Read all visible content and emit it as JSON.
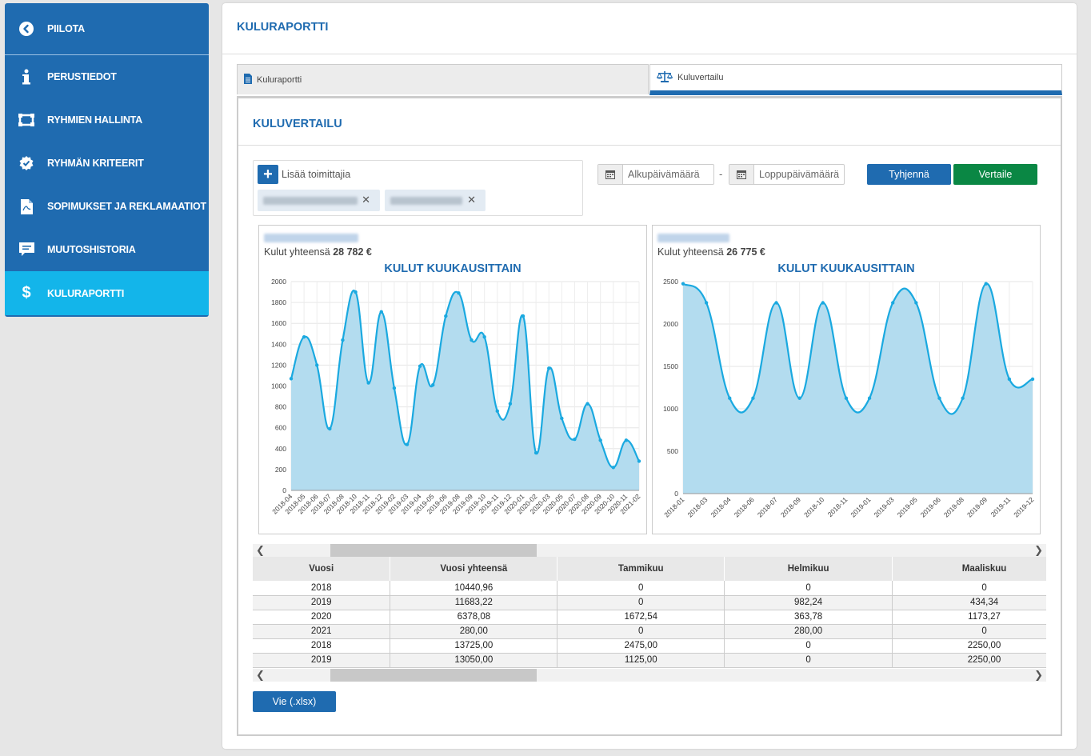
{
  "sidebar": {
    "items": [
      {
        "label": "PIILOTA",
        "icon": "chevron-left-circle-icon"
      },
      {
        "label": "PERUSTIEDOT",
        "icon": "info-icon"
      },
      {
        "label": "RYHMIEN HALLINTA",
        "icon": "group-frame-icon"
      },
      {
        "label": "RYHMÄN KRITEERIT",
        "icon": "badge-check-icon"
      },
      {
        "label": "SOPIMUKSET JA REKLAMAATIOT",
        "icon": "pdf-document-icon"
      },
      {
        "label": "MUUTOSHISTORIA",
        "icon": "comment-icon"
      },
      {
        "label": "KULURAPORTTI",
        "icon": "dollar-icon"
      }
    ]
  },
  "page": {
    "title": "KULURAPORTTI"
  },
  "tabs": [
    {
      "label": "Kuluraportti",
      "icon": "document-icon"
    },
    {
      "label": "Kuluvertailu",
      "icon": "balance-scale-icon"
    }
  ],
  "panel": {
    "title": "KULUVERTAILU"
  },
  "suppliers": {
    "add_label": "Lisää toimittajia",
    "remove_symbol": "✕"
  },
  "dates": {
    "start_placeholder": "Alkupäivämäärä",
    "end_placeholder": "Loppupäivämäärä",
    "separator": "-"
  },
  "buttons": {
    "clear": "Tyhjennä",
    "compare": "Vertaile",
    "export": "Vie (.xlsx)"
  },
  "colors": {
    "primary": "#1f6bb0",
    "active_nav": "#13b5ea",
    "success": "#0a8744",
    "chart_line": "#1aa9e0",
    "chart_fill": "#b3dcef"
  },
  "charts": [
    {
      "total_label": "Kulut yhteensä",
      "total_value": "28 782 €"
    },
    {
      "total_label": "Kulut yhteensä",
      "total_value": "26 775 €"
    }
  ],
  "chart_data": [
    {
      "type": "area",
      "title": "KULUT KUUKAUSITTAIN",
      "xlabel": "",
      "ylabel": "",
      "ylim": [
        0,
        2000
      ],
      "yticks": [
        0,
        200,
        400,
        600,
        800,
        1000,
        1200,
        1400,
        1600,
        1800,
        2000
      ],
      "grid": true,
      "x": [
        "2018-04",
        "2018-05",
        "2018-06",
        "2018-07",
        "2018-08",
        "2018-10",
        "2018-11",
        "2018-12",
        "2019-02",
        "2019-03",
        "2019-04",
        "2019-05",
        "2019-06",
        "2019-08",
        "2019-09",
        "2019-10",
        "2019-11",
        "2019-12",
        "2020-01",
        "2020-02",
        "2020-03",
        "2020-05",
        "2020-07",
        "2020-08",
        "2020-09",
        "2020-10",
        "2020-11",
        "2021-02"
      ],
      "series": [
        {
          "values": [
            1070,
            1470,
            1200,
            590,
            1440,
            1900,
            1030,
            1710,
            980,
            440,
            1190,
            1010,
            1670,
            1890,
            1440,
            1470,
            760,
            830,
            1670,
            360,
            1170,
            690,
            490,
            830,
            480,
            220,
            480,
            280
          ]
        }
      ]
    },
    {
      "type": "area",
      "title": "KULUT KUUKAUSITTAIN",
      "xlabel": "",
      "ylabel": "",
      "ylim": [
        0,
        2500
      ],
      "yticks": [
        0,
        500,
        1000,
        1500,
        2000,
        2500
      ],
      "grid": true,
      "x": [
        "2018-01",
        "2018-03",
        "2018-04",
        "2018-06",
        "2018-07",
        "2018-09",
        "2018-10",
        "2018-11",
        "2019-01",
        "2019-03",
        "2019-05",
        "2019-06",
        "2019-08",
        "2019-09",
        "2019-11",
        "2019-12"
      ],
      "series": [
        {
          "values": [
            2475,
            2250,
            1125,
            1125,
            2250,
            1125,
            2250,
            1125,
            1125,
            2250,
            2250,
            1125,
            1125,
            2475,
            1350,
            1350
          ]
        }
      ]
    }
  ],
  "table": {
    "headers": [
      "Vuosi",
      "Vuosi yhteensä",
      "Tammikuu",
      "Helmikuu",
      "Maaliskuu"
    ],
    "rows": [
      [
        "2018",
        "10440,96",
        "0",
        "0",
        "0"
      ],
      [
        "2019",
        "11683,22",
        "0",
        "982,24",
        "434,34"
      ],
      [
        "2020",
        "6378,08",
        "1672,54",
        "363,78",
        "1173,27"
      ],
      [
        "2021",
        "280,00",
        "0",
        "280,00",
        "0"
      ],
      [
        "2018",
        "13725,00",
        "2475,00",
        "0",
        "2250,00"
      ],
      [
        "2019",
        "13050,00",
        "1125,00",
        "0",
        "2250,00"
      ]
    ]
  }
}
